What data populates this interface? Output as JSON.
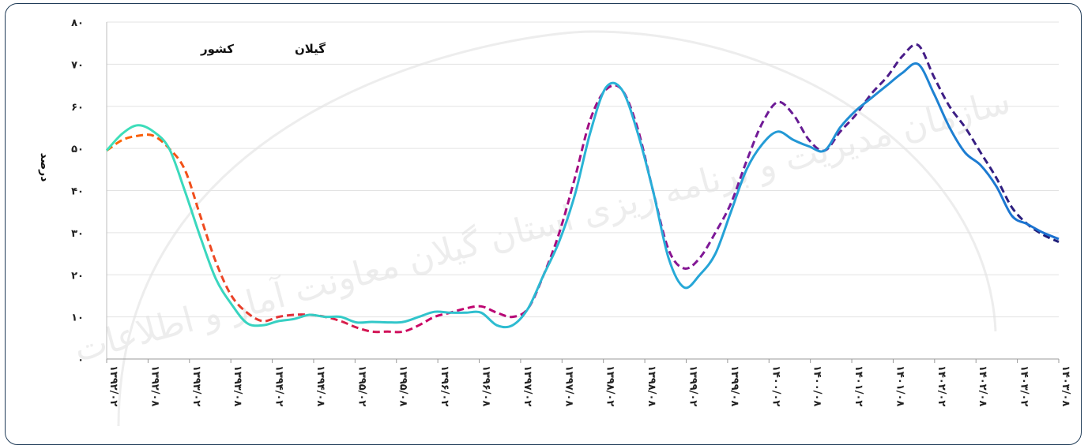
{
  "chart_data": {
    "type": "line",
    "ylabel": "درصد",
    "ylim": [
      0,
      80
    ],
    "yticks": [
      0,
      10,
      20,
      30,
      40,
      50,
      60,
      70,
      80
    ],
    "ytick_labels": [
      "۰",
      "۱۰",
      "۲۰",
      "۳۰",
      "۴۰",
      "۵۰",
      "۶۰",
      "۷۰",
      "۸۰"
    ],
    "grid": true,
    "legend_position": "top-left",
    "x_labels": [
      "۱۳۹۲/۰۲",
      "۱۳۹۲/۰۸",
      "۱۳۹۳/۰۲",
      "۱۳۹۳/۰۸",
      "۱۳۹۴/۰۲",
      "۱۳۹۴/۰۸",
      "۱۳۹۵/۰۲",
      "۱۳۹۵/۰۸",
      "۱۳۹۶/۰۲",
      "۱۳۹۶/۰۸",
      "۱۳۹۷/۰۲",
      "۱۳۹۷/۰۸",
      "۱۳۹۸/۰۲",
      "۱۳۹۸/۰۸",
      "۱۳۹۹/۰۲",
      "۱۳۹۹/۰۸",
      "۱۴۰۰/۰۲",
      "۱۴۰۰/۰۸",
      "۱۴۰۱/۰۲",
      "۱۴۰۱/۰۸",
      "۱۴۰۲/۰۲",
      "۱۴۰۲/۰۸",
      "۱۴۰۳/۰۲",
      "۱۴۰۳/۰۸"
    ],
    "series": [
      {
        "name": "گیلان",
        "style": "solid",
        "color_start": "#3ee0b8",
        "color_end": "#1a6fd0",
        "values": [
          49.5,
          53.5,
          55.5,
          54,
          50,
          40,
          29,
          19,
          13,
          8.5,
          8,
          9,
          9.5,
          10.5,
          10,
          10,
          8.7,
          8.8,
          8.7,
          8.8,
          10,
          11.2,
          11,
          11,
          11,
          8,
          8,
          12,
          20,
          28,
          39,
          54,
          64.5,
          64,
          54,
          40,
          24,
          17,
          20,
          25,
          35,
          45,
          51,
          54,
          52,
          50.5,
          49.5,
          55,
          59,
          62,
          65,
          68,
          70,
          63,
          55,
          49,
          46,
          41,
          34,
          32,
          30,
          28.5
        ]
      },
      {
        "name": "کشور",
        "style": "dashed",
        "color_start": "#ff6a00",
        "color_end": "#1f1f7a",
        "values": [
          49.5,
          52,
          53,
          53,
          50,
          45,
          34,
          23,
          15,
          11,
          9,
          10,
          10.5,
          10.5,
          10,
          9,
          7.5,
          6.5,
          6.5,
          6.5,
          8,
          10,
          11,
          12,
          12.5,
          11,
          10,
          12,
          20,
          30,
          43,
          57,
          64,
          64,
          55,
          40,
          26,
          21.5,
          24,
          30,
          37,
          47,
          56,
          61,
          58,
          52,
          49.5,
          54,
          58,
          63,
          67,
          72,
          74.5,
          67,
          60,
          55,
          49,
          43,
          36,
          32,
          29.5,
          27.8
        ]
      }
    ]
  },
  "watermark": "سازمان مدیریت و برنامه ریزی استان گیلان معاونت آمار و اطلاعات"
}
